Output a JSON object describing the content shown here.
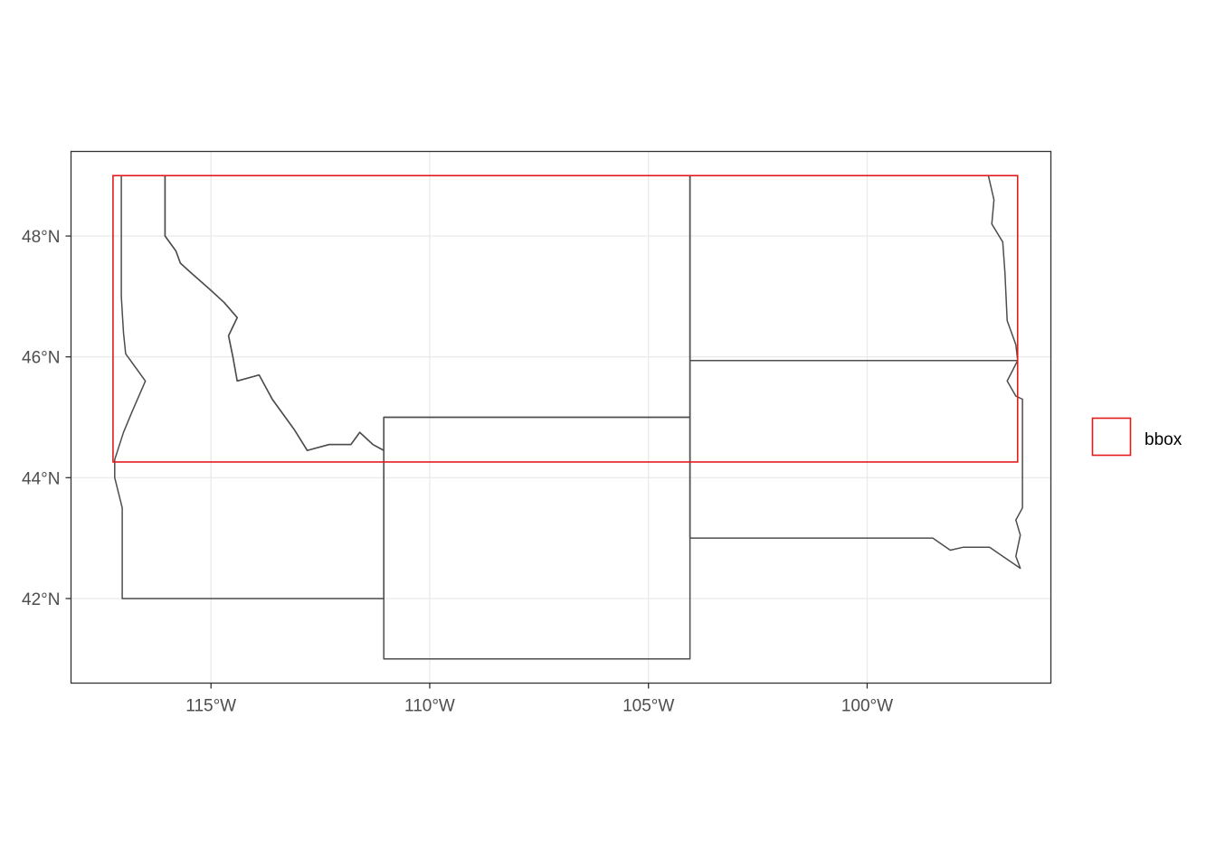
{
  "chart_data": {
    "type": "map",
    "projection": "geographic",
    "xlim": [
      -118.2,
      -95.8
    ],
    "ylim": [
      40.6,
      49.4
    ],
    "x_ticks": [
      {
        "value": -115,
        "label": "115°W"
      },
      {
        "value": -110,
        "label": "110°W"
      },
      {
        "value": -105,
        "label": "105°W"
      },
      {
        "value": -100,
        "label": "100°W"
      }
    ],
    "y_ticks": [
      {
        "value": 42,
        "label": "42°N"
      },
      {
        "value": 44,
        "label": "44°N"
      },
      {
        "value": 46,
        "label": "46°N"
      },
      {
        "value": 48,
        "label": "48°N"
      }
    ],
    "grid": true,
    "legend": {
      "position": "right",
      "entries": [
        {
          "label": "bbox",
          "color": "#e31a1c",
          "shape": "outlined-rect"
        }
      ]
    },
    "bbox": {
      "xmin": -117.24,
      "xmax": -96.56,
      "ymin": 44.26,
      "ymax": 49.0,
      "color": "#e31a1c"
    },
    "boundary_color": "#4d4d4d",
    "states": [
      {
        "name": "idaho",
        "coords": [
          [
            -117.05,
            49.0
          ],
          [
            -116.05,
            49.0
          ],
          [
            -116.05,
            48.0
          ],
          [
            -115.8,
            47.75
          ],
          [
            -115.7,
            47.55
          ],
          [
            -115.5,
            47.42
          ],
          [
            -115.0,
            47.1
          ],
          [
            -114.7,
            46.9
          ],
          [
            -114.4,
            46.65
          ],
          [
            -114.6,
            46.35
          ],
          [
            -114.5,
            46.0
          ],
          [
            -114.4,
            45.6
          ],
          [
            -113.9,
            45.7
          ],
          [
            -113.6,
            45.3
          ],
          [
            -113.1,
            44.8
          ],
          [
            -112.8,
            44.45
          ],
          [
            -112.3,
            44.55
          ],
          [
            -111.8,
            44.55
          ],
          [
            -111.6,
            44.75
          ],
          [
            -111.3,
            44.55
          ],
          [
            -111.05,
            44.45
          ],
          [
            -111.05,
            42.0
          ],
          [
            -117.03,
            42.0
          ],
          [
            -117.03,
            43.5
          ],
          [
            -117.2,
            44.0
          ],
          [
            -117.2,
            44.3
          ],
          [
            -117.0,
            44.75
          ],
          [
            -116.8,
            45.1
          ],
          [
            -116.5,
            45.6
          ],
          [
            -116.7,
            45.8
          ],
          [
            -116.95,
            46.05
          ],
          [
            -117.0,
            46.4
          ],
          [
            -117.05,
            47.0
          ],
          [
            -117.05,
            49.0
          ]
        ]
      },
      {
        "name": "montana",
        "coords": [
          [
            -116.05,
            49.0
          ],
          [
            -104.05,
            49.0
          ],
          [
            -104.05,
            45.0
          ],
          [
            -111.05,
            45.0
          ],
          [
            -111.05,
            44.45
          ],
          [
            -111.3,
            44.55
          ],
          [
            -111.6,
            44.75
          ],
          [
            -111.8,
            44.55
          ],
          [
            -112.3,
            44.55
          ],
          [
            -112.8,
            44.45
          ],
          [
            -113.1,
            44.8
          ],
          [
            -113.6,
            45.3
          ],
          [
            -113.9,
            45.7
          ],
          [
            -114.4,
            45.6
          ],
          [
            -114.5,
            46.0
          ],
          [
            -114.6,
            46.35
          ],
          [
            -114.4,
            46.65
          ],
          [
            -114.7,
            46.9
          ],
          [
            -115.0,
            47.1
          ],
          [
            -115.5,
            47.42
          ],
          [
            -115.7,
            47.55
          ],
          [
            -115.8,
            47.75
          ],
          [
            -116.05,
            48.0
          ],
          [
            -116.05,
            49.0
          ]
        ]
      },
      {
        "name": "wyoming",
        "coords": [
          [
            -111.05,
            45.0
          ],
          [
            -104.05,
            45.0
          ],
          [
            -104.05,
            41.0
          ],
          [
            -111.05,
            41.0
          ],
          [
            -111.05,
            45.0
          ]
        ]
      },
      {
        "name": "north-dakota",
        "coords": [
          [
            -104.05,
            49.0
          ],
          [
            -97.23,
            49.0
          ],
          [
            -97.1,
            48.6
          ],
          [
            -97.15,
            48.2
          ],
          [
            -96.9,
            47.9
          ],
          [
            -96.85,
            47.4
          ],
          [
            -96.8,
            46.6
          ],
          [
            -96.6,
            46.2
          ],
          [
            -96.56,
            45.94
          ],
          [
            -104.05,
            45.94
          ],
          [
            -104.05,
            49.0
          ]
        ]
      },
      {
        "name": "south-dakota",
        "coords": [
          [
            -104.05,
            45.94
          ],
          [
            -96.56,
            45.94
          ],
          [
            -96.8,
            45.6
          ],
          [
            -96.6,
            45.35
          ],
          [
            -96.45,
            45.3
          ],
          [
            -96.45,
            43.5
          ],
          [
            -96.6,
            43.3
          ],
          [
            -96.5,
            43.05
          ],
          [
            -96.6,
            42.7
          ],
          [
            -96.5,
            42.5
          ],
          [
            -96.9,
            42.7
          ],
          [
            -97.2,
            42.85
          ],
          [
            -97.8,
            42.85
          ],
          [
            -98.1,
            42.8
          ],
          [
            -98.5,
            43.0
          ],
          [
            -104.05,
            43.0
          ],
          [
            -104.05,
            45.94
          ]
        ]
      }
    ]
  }
}
